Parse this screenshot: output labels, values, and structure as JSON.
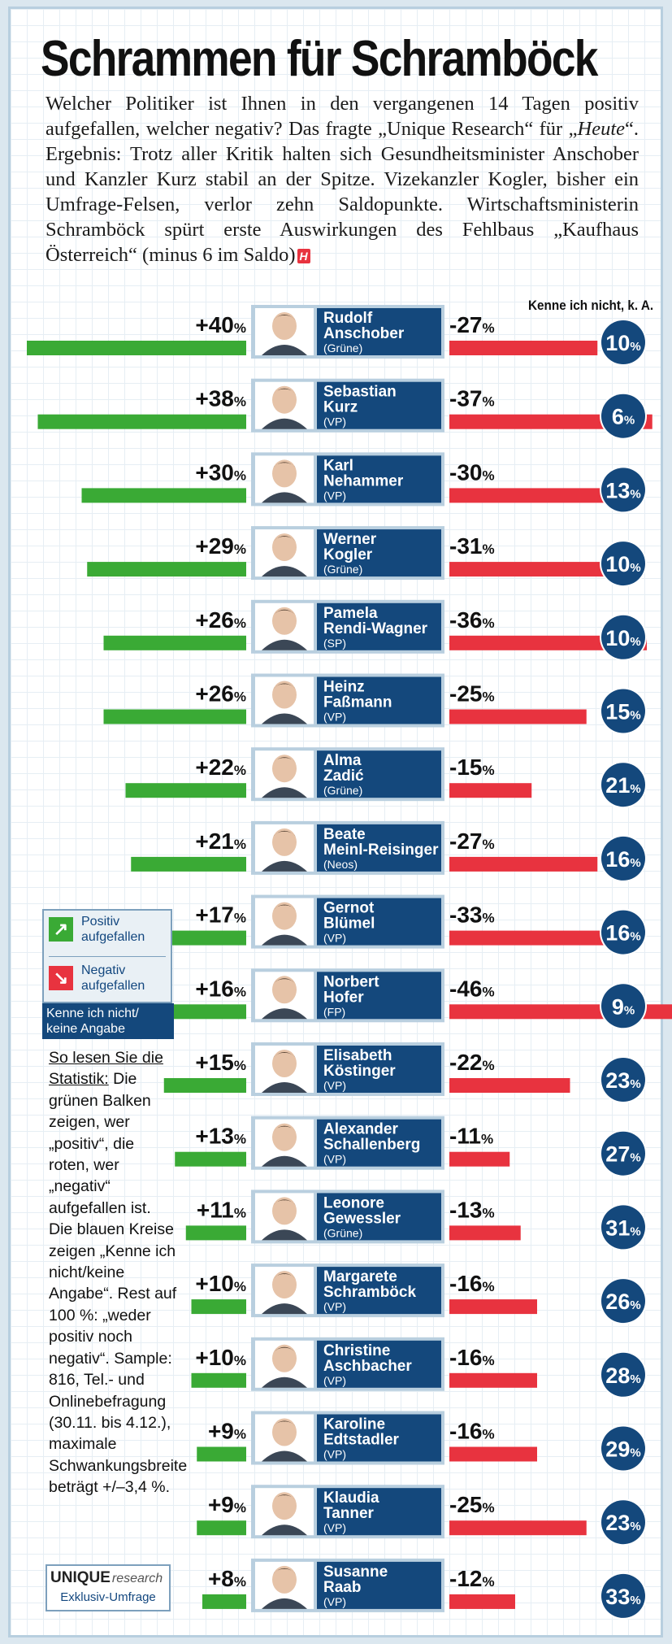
{
  "title": "Schrammen für Schramböck",
  "intro": {
    "part1": "Welcher Politiker ist Ihnen in den vergangenen 14 Tagen positiv aufgefallen, welcher negativ? Das fragte „Unique Research“ für „",
    "italic": "Heute",
    "part2": "“. Ergebnis: Trotz aller Kritik halten sich Gesundheitsminister Anschober und Kanzler Kurz stabil an der Spitze. Vizekanzler Kogler, bisher ein Umfrage-Felsen, verlor zehn Saldopunkte. Wirtschaftsministerin Schramböck spürt erste Auswirkungen des Fehlbaus „Kaufhaus Österreich“ (minus 6 im Saldo)",
    "mark": "H"
  },
  "kenne_header": "Kenne ich nicht, k. A.",
  "chart_data": {
    "type": "bar",
    "unit": "%",
    "categories": [
      "Rudolf Anschober (Grüne)",
      "Sebastian Kurz (VP)",
      "Karl Nehammer (VP)",
      "Werner Kogler (Grüne)",
      "Pamela Rendi-Wagner (SP)",
      "Heinz Faßmann (VP)",
      "Alma Zadić (Grüne)",
      "Beate Meinl-Reisinger (Neos)",
      "Gernot Blümel (VP)",
      "Norbert Hofer (FP)",
      "Elisabeth Köstinger (VP)",
      "Alexander Schallenberg (VP)",
      "Leonore Gewessler (Grüne)",
      "Margarete Schramböck (VP)",
      "Christine Aschbacher (VP)",
      "Karoline Edtstadler (VP)",
      "Klaudia Tanner (VP)",
      "Susanne Raab (VP)"
    ],
    "series": [
      {
        "name": "Positiv aufgefallen",
        "color": "#3aaa35",
        "values": [
          40,
          38,
          30,
          29,
          26,
          26,
          22,
          21,
          17,
          16,
          15,
          13,
          11,
          10,
          10,
          9,
          9,
          8
        ]
      },
      {
        "name": "Negativ aufgefallen",
        "color": "#e8333f",
        "values": [
          27,
          37,
          30,
          31,
          36,
          25,
          15,
          27,
          33,
          46,
          22,
          11,
          13,
          16,
          16,
          16,
          25,
          12
        ]
      },
      {
        "name": "Kenne ich nicht/keine Angabe",
        "color": "#14487c",
        "values": [
          10,
          6,
          13,
          10,
          10,
          15,
          21,
          16,
          16,
          9,
          23,
          27,
          31,
          26,
          28,
          29,
          23,
          33
        ]
      }
    ]
  },
  "politicians": [
    {
      "first": "Rudolf",
      "last": "Anschober",
      "party": "(Grüne)",
      "pos": "+40",
      "neg": "-27",
      "kenne": "10"
    },
    {
      "first": "Sebastian",
      "last": "Kurz",
      "party": "(VP)",
      "pos": "+38",
      "neg": "-37",
      "kenne": "6"
    },
    {
      "first": "Karl",
      "last": "Nehammer",
      "party": "(VP)",
      "pos": "+30",
      "neg": "-30",
      "kenne": "13"
    },
    {
      "first": "Werner",
      "last": "Kogler",
      "party": "(Grüne)",
      "pos": "+29",
      "neg": "-31",
      "kenne": "10"
    },
    {
      "first": "Pamela",
      "last": "Rendi-Wagner",
      "party": "(SP)",
      "pos": "+26",
      "neg": "-36",
      "kenne": "10"
    },
    {
      "first": "Heinz",
      "last": "Faßmann",
      "party": "(VP)",
      "pos": "+26",
      "neg": "-25",
      "kenne": "15"
    },
    {
      "first": "Alma",
      "last": "Zadić",
      "party": "(Grüne)",
      "pos": "+22",
      "neg": "-15",
      "kenne": "21"
    },
    {
      "first": "Beate",
      "last": "Meinl-Reisinger",
      "party": "(Neos)",
      "pos": "+21",
      "neg": "-27",
      "kenne": "16"
    },
    {
      "first": "Gernot",
      "last": "Blümel",
      "party": "(VP)",
      "pos": "+17",
      "neg": "-33",
      "kenne": "16"
    },
    {
      "first": "Norbert",
      "last": "Hofer",
      "party": "(FP)",
      "pos": "+16",
      "neg": "-46",
      "kenne": "9"
    },
    {
      "first": "Elisabeth",
      "last": "Köstinger",
      "party": "(VP)",
      "pos": "+15",
      "neg": "-22",
      "kenne": "23"
    },
    {
      "first": "Alexander",
      "last": "Schallenberg",
      "party": "(VP)",
      "pos": "+13",
      "neg": "-11",
      "kenne": "27"
    },
    {
      "first": "Leonore",
      "last": "Gewessler",
      "party": "(Grüne)",
      "pos": "+11",
      "neg": "-13",
      "kenne": "31"
    },
    {
      "first": "Margarete",
      "last": "Schramböck",
      "party": "(VP)",
      "pos": "+10",
      "neg": "-16",
      "kenne": "26"
    },
    {
      "first": "Christine",
      "last": "Aschbacher",
      "party": "(VP)",
      "pos": "+10",
      "neg": "-16",
      "kenne": "28"
    },
    {
      "first": "Karoline",
      "last": "Edtstadler",
      "party": "(VP)",
      "pos": "+9",
      "neg": "-16",
      "kenne": "29"
    },
    {
      "first": "Klaudia",
      "last": "Tanner",
      "party": "(VP)",
      "pos": "+9",
      "neg": "-25",
      "kenne": "23"
    },
    {
      "first": "Susanne",
      "last": "Raab",
      "party": "(VP)",
      "pos": "+8",
      "neg": "-12",
      "kenne": "33"
    }
  ],
  "legend": {
    "positive": "Positiv aufgefallen",
    "negative": "Negativ aufgefallen",
    "kenne": "Kenne ich nicht/ keine Angabe",
    "positive_color": "#3aaa35",
    "negative_color": "#e8333f",
    "kenne_color": "#14487c"
  },
  "reading": {
    "heading": "So lesen Sie die Statistik:",
    "text": " Die grünen Balken zeigen, wer „positiv“, die roten, wer „negativ“ aufgefallen ist. Die blauen Kreise zeigen „Kenne ich nicht/keine Angabe“. Rest auf 100 %: „weder positiv noch negativ“. Sample: 816, Tel.- und Onlinebefragung (30.11. bis 4.12.), maximale Schwankungsbreite beträgt +/–3,4 %."
  },
  "logo": {
    "brand": "UNIQUE",
    "brand_small": "research",
    "sub": "Exklusiv-Umfrage"
  }
}
